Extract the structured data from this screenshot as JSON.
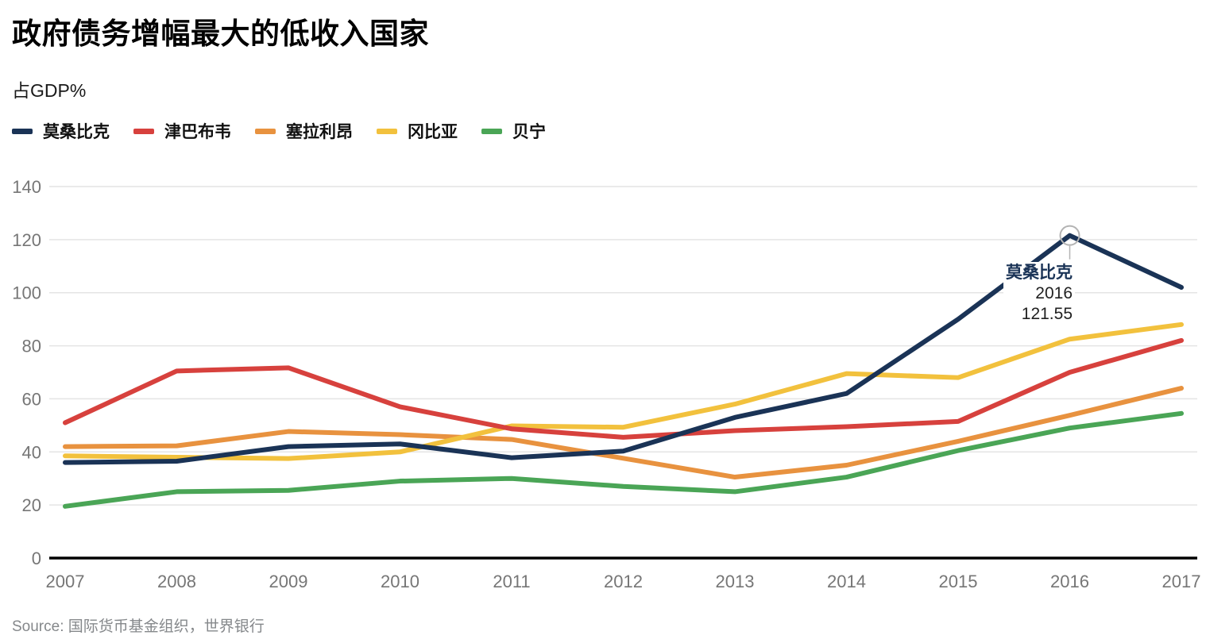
{
  "chart_data": {
    "type": "line",
    "title": "政府债务增幅最大的低收入国家",
    "subtitle": "占GDP%",
    "ylabel": "占GDP%",
    "x": [
      2007,
      2008,
      2009,
      2010,
      2011,
      2012,
      2013,
      2014,
      2015,
      2016,
      2017
    ],
    "y_ticks": [
      0,
      20,
      40,
      60,
      80,
      100,
      120,
      140
    ],
    "ylim": [
      0,
      140
    ],
    "grid": "horizontal",
    "legend_position": "top",
    "series": [
      {
        "name": "莫桑比克",
        "color": "#1a3356",
        "values": [
          36,
          36.5,
          42,
          43,
          37.8,
          40.3,
          53,
          62,
          90,
          121.55,
          102
        ]
      },
      {
        "name": "津巴布韦",
        "color": "#d7413d",
        "values": [
          51,
          70.5,
          71.7,
          57,
          48.7,
          45.5,
          48,
          49.5,
          51.5,
          70,
          82
        ]
      },
      {
        "name": "塞拉利昂",
        "color": "#e8923f",
        "values": [
          42,
          42.3,
          47.7,
          46.5,
          44.7,
          37.6,
          30.5,
          35,
          44,
          53.8,
          64
        ]
      },
      {
        "name": "冈比亚",
        "color": "#f2c13d",
        "values": [
          38.5,
          38,
          37.5,
          40,
          49.8,
          49.3,
          58,
          69.5,
          68,
          82.5,
          88
        ]
      },
      {
        "name": "贝宁",
        "color": "#4aa556",
        "values": [
          19.5,
          25,
          25.5,
          29,
          30,
          27,
          25,
          30.5,
          40.5,
          49,
          54.5
        ]
      }
    ],
    "annotation": {
      "series": "莫桑比克",
      "x": 2016,
      "x_label": "2016",
      "value": 121.55,
      "value_label": "121.55"
    }
  },
  "footer": {
    "source": "Source: 国际货币基金组织，世界银行"
  },
  "colors": {
    "grid": "#e4e4e4",
    "axis": "#000000",
    "tick_label": "#767676",
    "annotation_marker": "#b3b3b3",
    "title_text": "#000000",
    "source_text": "#85888b"
  }
}
